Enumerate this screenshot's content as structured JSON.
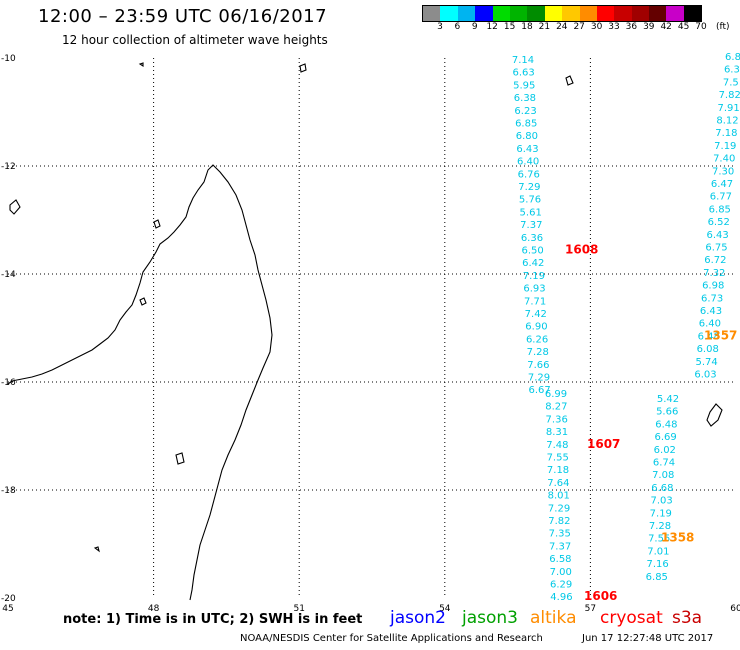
{
  "header": {
    "title": "12:00 – 23:59 UTC 06/16/2017",
    "subtitle": "12 hour collection of altimeter wave heights"
  },
  "color_scale": {
    "labels": [
      "3",
      "6",
      "9",
      "12",
      "15",
      "18",
      "21",
      "24",
      "27",
      "30",
      "33",
      "36",
      "39",
      "42",
      "45",
      "70"
    ],
    "unit": "(ft)",
    "colors": [
      "#8c8c8c",
      "#00ffff",
      "#00b4f0",
      "#0000ff",
      "#00dc00",
      "#00b400",
      "#008c00",
      "#ffff00",
      "#ffc800",
      "#ff8c00",
      "#ff0000",
      "#c80000",
      "#a00000",
      "#640000",
      "#c800c8",
      "#000000"
    ]
  },
  "map": {
    "lon_labels": [
      "45",
      "48",
      "51",
      "54",
      "57",
      "60"
    ],
    "lat_labels": [
      "-10",
      "-12",
      "-14",
      "-16",
      "-18",
      "-20"
    ],
    "extent": {
      "lon": [
        45,
        60
      ],
      "lat": [
        -10,
        -20
      ]
    }
  },
  "tracks": [
    {
      "satellite": "s3a",
      "time_label": "1608",
      "time_color": "#ff0000",
      "heights": [
        "7.14",
        "6.63",
        "5.95",
        "6.38",
        "6.23",
        "6.85",
        "6.80",
        "6.43",
        "6.40",
        "6.76",
        "7.29",
        "5.76",
        "5.61",
        "7.37",
        "6.36",
        "6.50",
        "6.42",
        "7.19",
        "6.93",
        "7.71",
        "7.42",
        "6.90",
        "6.26",
        "7.28",
        "7.66",
        "7.29",
        "6.67"
      ]
    },
    {
      "satellite": "s3a",
      "time_label": "1607",
      "time_color": "#ff0000",
      "heights": [
        "6.99",
        "8.27",
        "7.36",
        "8.31",
        "7.48",
        "7.55",
        "7.18",
        "7.64",
        "8.01",
        "7.29",
        "7.82",
        "7.35",
        "7.37",
        "6.58",
        "7.00",
        "6.29",
        "4.96"
      ]
    },
    {
      "satellite": "altika",
      "time_label": "1357",
      "time_color": "#ff8c00",
      "heights": [
        "6.8",
        "6.3",
        "7.5",
        "7.82",
        "7.91",
        "8.12",
        "7.18",
        "7.19",
        "7.40",
        "7.30",
        "6.47",
        "6.77",
        "6.85",
        "6.52",
        "6.43",
        "6.75",
        "6.72",
        "7.32",
        "6.98",
        "6.73",
        "6.43",
        "6.40",
        "6.48",
        "6.08",
        "5.74",
        "6.03"
      ]
    },
    {
      "satellite": "altika",
      "time_label": "1358",
      "time_color": "#ff8c00",
      "heights": [
        "5.42",
        "5.66",
        "6.48",
        "6.69",
        "6.02",
        "6.74",
        "7.08",
        "6.68",
        "7.03",
        "7.19",
        "7.28",
        "7.55",
        "7.01",
        "7.16",
        "6.85"
      ]
    },
    {
      "satellite": "cryosat",
      "time_label": "1606",
      "time_color": "#ff0000",
      "heights": []
    }
  ],
  "height_color": "#00c8e6",
  "footer": {
    "note": "note:  1) Time is in UTC; 2) SWH is in feet",
    "satellites": [
      {
        "name": "jason2",
        "color": "#0000ff"
      },
      {
        "name": "jason3",
        "color": "#00a000"
      },
      {
        "name": "altika",
        "color": "#ff8c00"
      },
      {
        "name": "cryosat",
        "color": "#ff0000"
      },
      {
        "name": "s3a",
        "color": "#c80000"
      }
    ],
    "credit": "NOAA/NESDIS Center for Satellite Applications and Research",
    "timestamp": "Jun 17 12:27:48 UTC 2017"
  }
}
